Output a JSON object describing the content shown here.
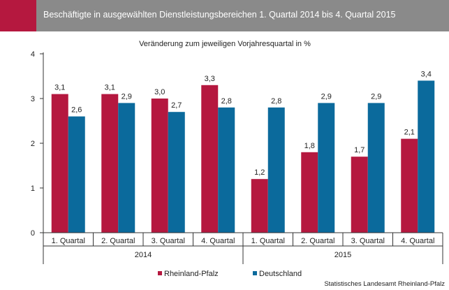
{
  "header": {
    "title": "Beschäftigte in ausgewählten Dienstleistungsbereichen 1. Quartal 2014 bis 4. Quartal 2015"
  },
  "chart_data": {
    "type": "bar",
    "subtitle": "Veränderung zum jeweiligen Vorjahresquartal in %",
    "categories": [
      "1. Quartal",
      "2. Quartal",
      "3. Quartal",
      "4. Quartal",
      "1. Quartal",
      "2. Quartal",
      "3. Quartal",
      "4. Quartal"
    ],
    "groups": [
      {
        "label": "2014",
        "span": [
          0,
          3
        ]
      },
      {
        "label": "2015",
        "span": [
          4,
          7
        ]
      }
    ],
    "series": [
      {
        "name": "Rheinland-Pfalz",
        "color": "#b5183f",
        "values": [
          3.1,
          3.1,
          3.0,
          3.3,
          1.2,
          1.8,
          1.7,
          2.1
        ],
        "labels": [
          "3,1",
          "3,1",
          "3,0",
          "3,3",
          "1,2",
          "1,8",
          "1,7",
          "2,1"
        ]
      },
      {
        "name": "Deutschland",
        "color": "#0b6a9c",
        "values": [
          2.6,
          2.9,
          2.7,
          2.8,
          2.8,
          2.9,
          2.9,
          3.4
        ],
        "labels": [
          "2,6",
          "2,9",
          "2,7",
          "2,8",
          "2,8",
          "2,9",
          "2,9",
          "3,4"
        ]
      }
    ],
    "ylim": [
      0,
      4
    ],
    "yticks": [
      0,
      1,
      2,
      3,
      4
    ],
    "legend_position": "bottom-left",
    "grid": false
  },
  "source": "Statistisches Landesamt Rheinland-Pfalz"
}
